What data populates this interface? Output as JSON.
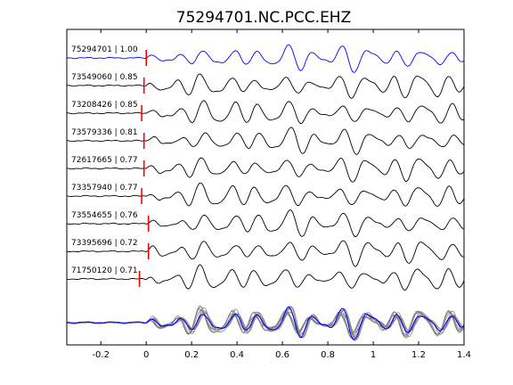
{
  "chart_data": {
    "type": "line",
    "title": "75294701.NC.PCC.EHZ",
    "xlabel": "",
    "ylabel": "",
    "xlim": [
      -0.35,
      1.4
    ],
    "xticks": [
      -0.2,
      0,
      0.2,
      0.4,
      0.6,
      0.8,
      1,
      1.2,
      1.4
    ],
    "xtick_labels": [
      "-0.2",
      "0",
      "0.2",
      "0.4",
      "0.6",
      "0.8",
      "1",
      "1.2",
      "1.4"
    ],
    "grid": false,
    "legend": "none",
    "colors": {
      "master": "#0000ff",
      "trace": "#000000",
      "pick": "#ff0000",
      "overlay": "#808080",
      "axes": "#000000"
    },
    "series": [
      {
        "name": "75294701 | 1.00",
        "id": "75294701",
        "cc": 1.0,
        "pick_time": 0.0
      },
      {
        "name": "73549060 | 0.85",
        "id": "73549060",
        "cc": 0.85,
        "pick_time": -0.01
      },
      {
        "name": "73208426 | 0.85",
        "id": "73208426",
        "cc": 0.85,
        "pick_time": -0.02
      },
      {
        "name": "73579336 | 0.81",
        "id": "73579336",
        "cc": 0.81,
        "pick_time": -0.01
      },
      {
        "name": "72617665 | 0.77",
        "id": "72617665",
        "cc": 0.77,
        "pick_time": -0.01
      },
      {
        "name": "73357940 | 0.77",
        "id": "73357940",
        "cc": 0.77,
        "pick_time": -0.02
      },
      {
        "name": "73554655 | 0.76",
        "id": "73554655",
        "cc": 0.76,
        "pick_time": 0.01
      },
      {
        "name": "73395696 | 0.72",
        "id": "73395696",
        "cc": 0.72,
        "pick_time": 0.01
      },
      {
        "name": "71750120 | 0.71",
        "id": "71750120",
        "cc": 0.71,
        "pick_time": -0.03
      }
    ],
    "stack": {
      "type": "overlay of all traces",
      "master_highlighted": true
    }
  }
}
